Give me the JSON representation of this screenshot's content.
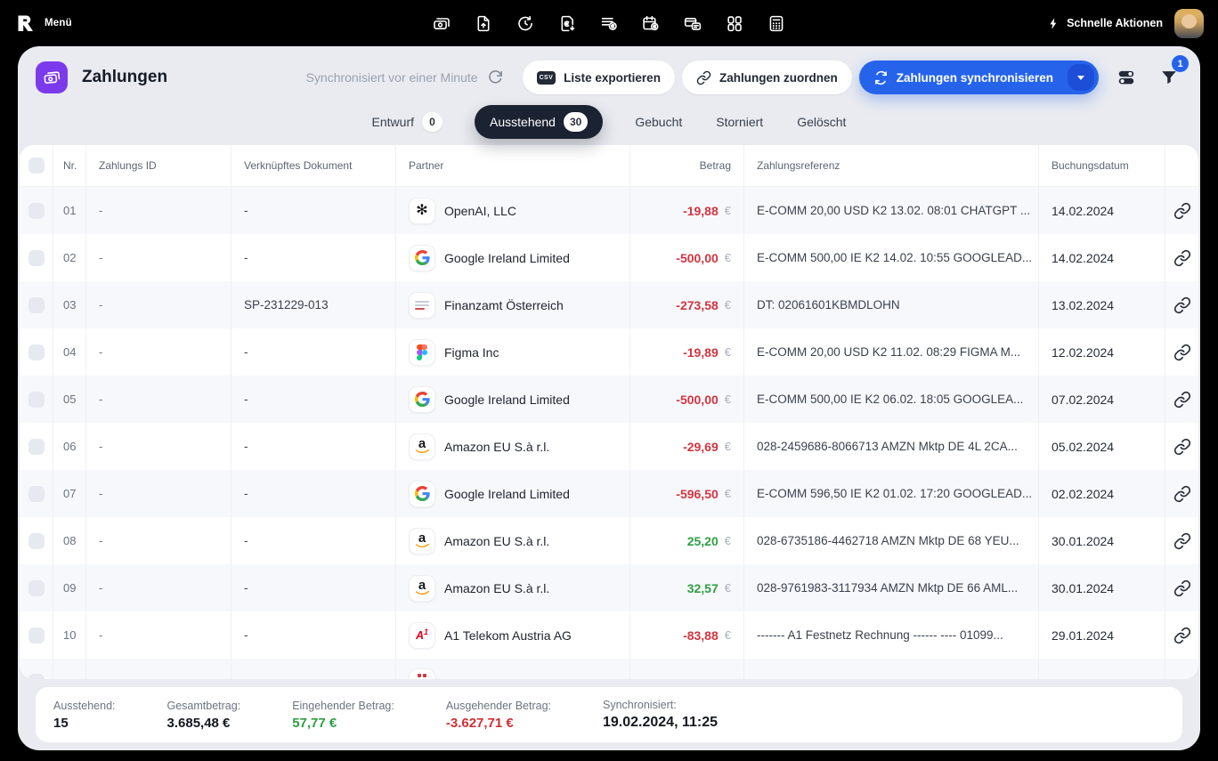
{
  "topbar": {
    "menu_label": "Menü",
    "quick_actions_label": "Schnelle Aktionen",
    "nav_icons": [
      "payments-icon",
      "document-sync-icon",
      "recurring-time-icon",
      "invoice-euro-icon",
      "list-coin-icon",
      "calendar-coin-icon",
      "card-transfer-icon",
      "apps-grid-icon",
      "calculator-icon"
    ]
  },
  "header": {
    "title": "Zahlungen",
    "sync_status": "Synchronisiert vor einer Minute",
    "csv_label": "CSV",
    "export_button": "Liste exportieren",
    "assign_button": "Zahlungen zuordnen",
    "sync_button": "Zahlungen synchronisieren",
    "filter_badge": "1"
  },
  "tabs": [
    {
      "label": "Entwurf",
      "count": "0",
      "active": false
    },
    {
      "label": "Ausstehend",
      "count": "30",
      "active": true
    },
    {
      "label": "Gebucht",
      "active": false
    },
    {
      "label": "Storniert",
      "active": false
    },
    {
      "label": "Gelöscht",
      "active": false
    }
  ],
  "table": {
    "columns": {
      "nr": "Nr.",
      "payment_id": "Zahlungs ID",
      "linked_document": "Verknüpftes Dokument",
      "partner": "Partner",
      "amount": "Betrag",
      "reference": "Zahlungsreferenz",
      "booking_date": "Buchungsdatum"
    },
    "rows": [
      {
        "nr": "01",
        "payment_id": "-",
        "linked_document": "-",
        "partner": "OpenAI, LLC",
        "logo": "openai",
        "amount": "-19,88",
        "currency": "€",
        "reference": "E-COMM 20,00 USD K2 13.02. 08:01 CHATGPT ...",
        "booking_date": "14.02.2024"
      },
      {
        "nr": "02",
        "payment_id": "-",
        "linked_document": "-",
        "partner": "Google Ireland Limited",
        "logo": "google",
        "amount": "-500,00",
        "currency": "€",
        "reference": "E-COMM 500,00 IE K2 14.02. 10:55 GOOGLEAD...",
        "booking_date": "14.02.2024"
      },
      {
        "nr": "03",
        "payment_id": "-",
        "linked_document": "SP-231229-013",
        "partner": "Finanzamt Österreich",
        "logo": "finanzamt",
        "amount": "-273,58",
        "currency": "€",
        "reference": "DT: 02061601KBMDLOHN",
        "booking_date": "13.02.2024"
      },
      {
        "nr": "04",
        "payment_id": "-",
        "linked_document": "-",
        "partner": "Figma Inc",
        "logo": "figma",
        "amount": "-19,89",
        "currency": "€",
        "reference": "E-COMM 20,00 USD K2 11.02. 08:29 FIGMA M...",
        "booking_date": "12.02.2024"
      },
      {
        "nr": "05",
        "payment_id": "-",
        "linked_document": "-",
        "partner": "Google Ireland Limited",
        "logo": "google",
        "amount": "-500,00",
        "currency": "€",
        "reference": "E-COMM 500,00 IE K2 06.02. 18:05 GOOGLEA...",
        "booking_date": "07.02.2024"
      },
      {
        "nr": "06",
        "payment_id": "-",
        "linked_document": "-",
        "partner": "Amazon EU S.à r.l.",
        "logo": "amazon",
        "amount": "-29,69",
        "currency": "€",
        "reference": "028-2459686-8066713 AMZN Mktp DE 4L 2CA...",
        "booking_date": "05.02.2024"
      },
      {
        "nr": "07",
        "payment_id": "-",
        "linked_document": "-",
        "partner": "Google Ireland Limited",
        "logo": "google",
        "amount": "-596,50",
        "currency": "€",
        "reference": "E-COMM 596,50 IE K2 01.02. 17:20 GOOGLEAD...",
        "booking_date": "02.02.2024"
      },
      {
        "nr": "08",
        "payment_id": "-",
        "linked_document": "-",
        "partner": "Amazon EU S.à r.l.",
        "logo": "amazon",
        "amount": "25,20",
        "currency": "€",
        "reference": "028-6735186-4462718 AMZN Mktp DE 68 YEU...",
        "booking_date": "30.01.2024"
      },
      {
        "nr": "09",
        "payment_id": "-",
        "linked_document": "-",
        "partner": "Amazon EU S.à r.l.",
        "logo": "amazon",
        "amount": "32,57",
        "currency": "€",
        "reference": "028-9761983-3117934 AMZN Mktp DE 66 AML...",
        "booking_date": "30.01.2024"
      },
      {
        "nr": "10",
        "payment_id": "-",
        "linked_document": "-",
        "partner": "A1 Telekom Austria AG",
        "logo": "a1",
        "amount": "-83,88",
        "currency": "€",
        "reference": "------- A1 Festnetz Rechnung ------ ---- 01099...",
        "booking_date": "29.01.2024"
      }
    ]
  },
  "footer": {
    "stats": [
      {
        "label": "Ausstehend:",
        "value": "15",
        "color": "default"
      },
      {
        "label": "Gesamtbetrag:",
        "value": "3.685,48 €",
        "color": "default"
      },
      {
        "label": "Eingehender Betrag:",
        "value": "57,77 €",
        "color": "green"
      },
      {
        "label": "Ausgehender Betrag:",
        "value": "-3.627,71 €",
        "color": "red"
      },
      {
        "label": "Synchronisiert:",
        "value": "19.02.2024, 11:25",
        "color": "default"
      }
    ]
  },
  "colors": {
    "accent_blue": "#2563eb",
    "negative_red": "#d23540",
    "positive_green": "#2e9e44",
    "brand_purple": "#7c3aed",
    "active_tab": "#1b2231",
    "card_bg": "#e9ebf0"
  }
}
